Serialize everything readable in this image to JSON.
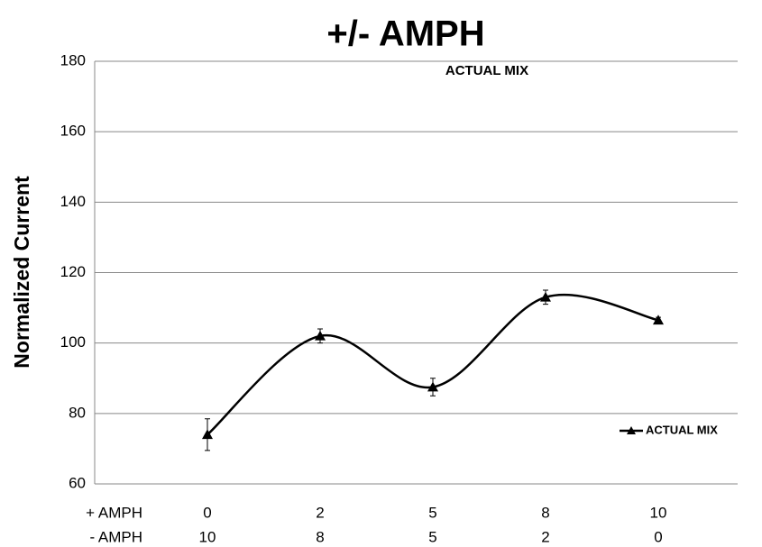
{
  "chart_data": {
    "type": "line",
    "title": "+/- AMPH",
    "annotation": "ACTUAL MIX",
    "y_label": "Normalized Current",
    "category_rows": [
      {
        "label": "+ AMPH",
        "categories": [
          "0",
          "2",
          "5",
          "8",
          "10"
        ]
      },
      {
        "label": "- AMPH",
        "categories": [
          "10",
          "8",
          "5",
          "2",
          "0"
        ]
      }
    ],
    "series": [
      {
        "name": "ACTUAL MIX",
        "color": "#000000",
        "values": [
          74,
          102,
          87.5,
          113,
          106.5
        ],
        "errors": [
          4.5,
          2,
          2.5,
          2,
          0.8
        ]
      }
    ],
    "smooth": true,
    "ylim": [
      60,
      180
    ],
    "yticks": [
      60,
      80,
      100,
      120,
      140,
      160,
      180
    ],
    "grid": true,
    "legend": "right"
  }
}
